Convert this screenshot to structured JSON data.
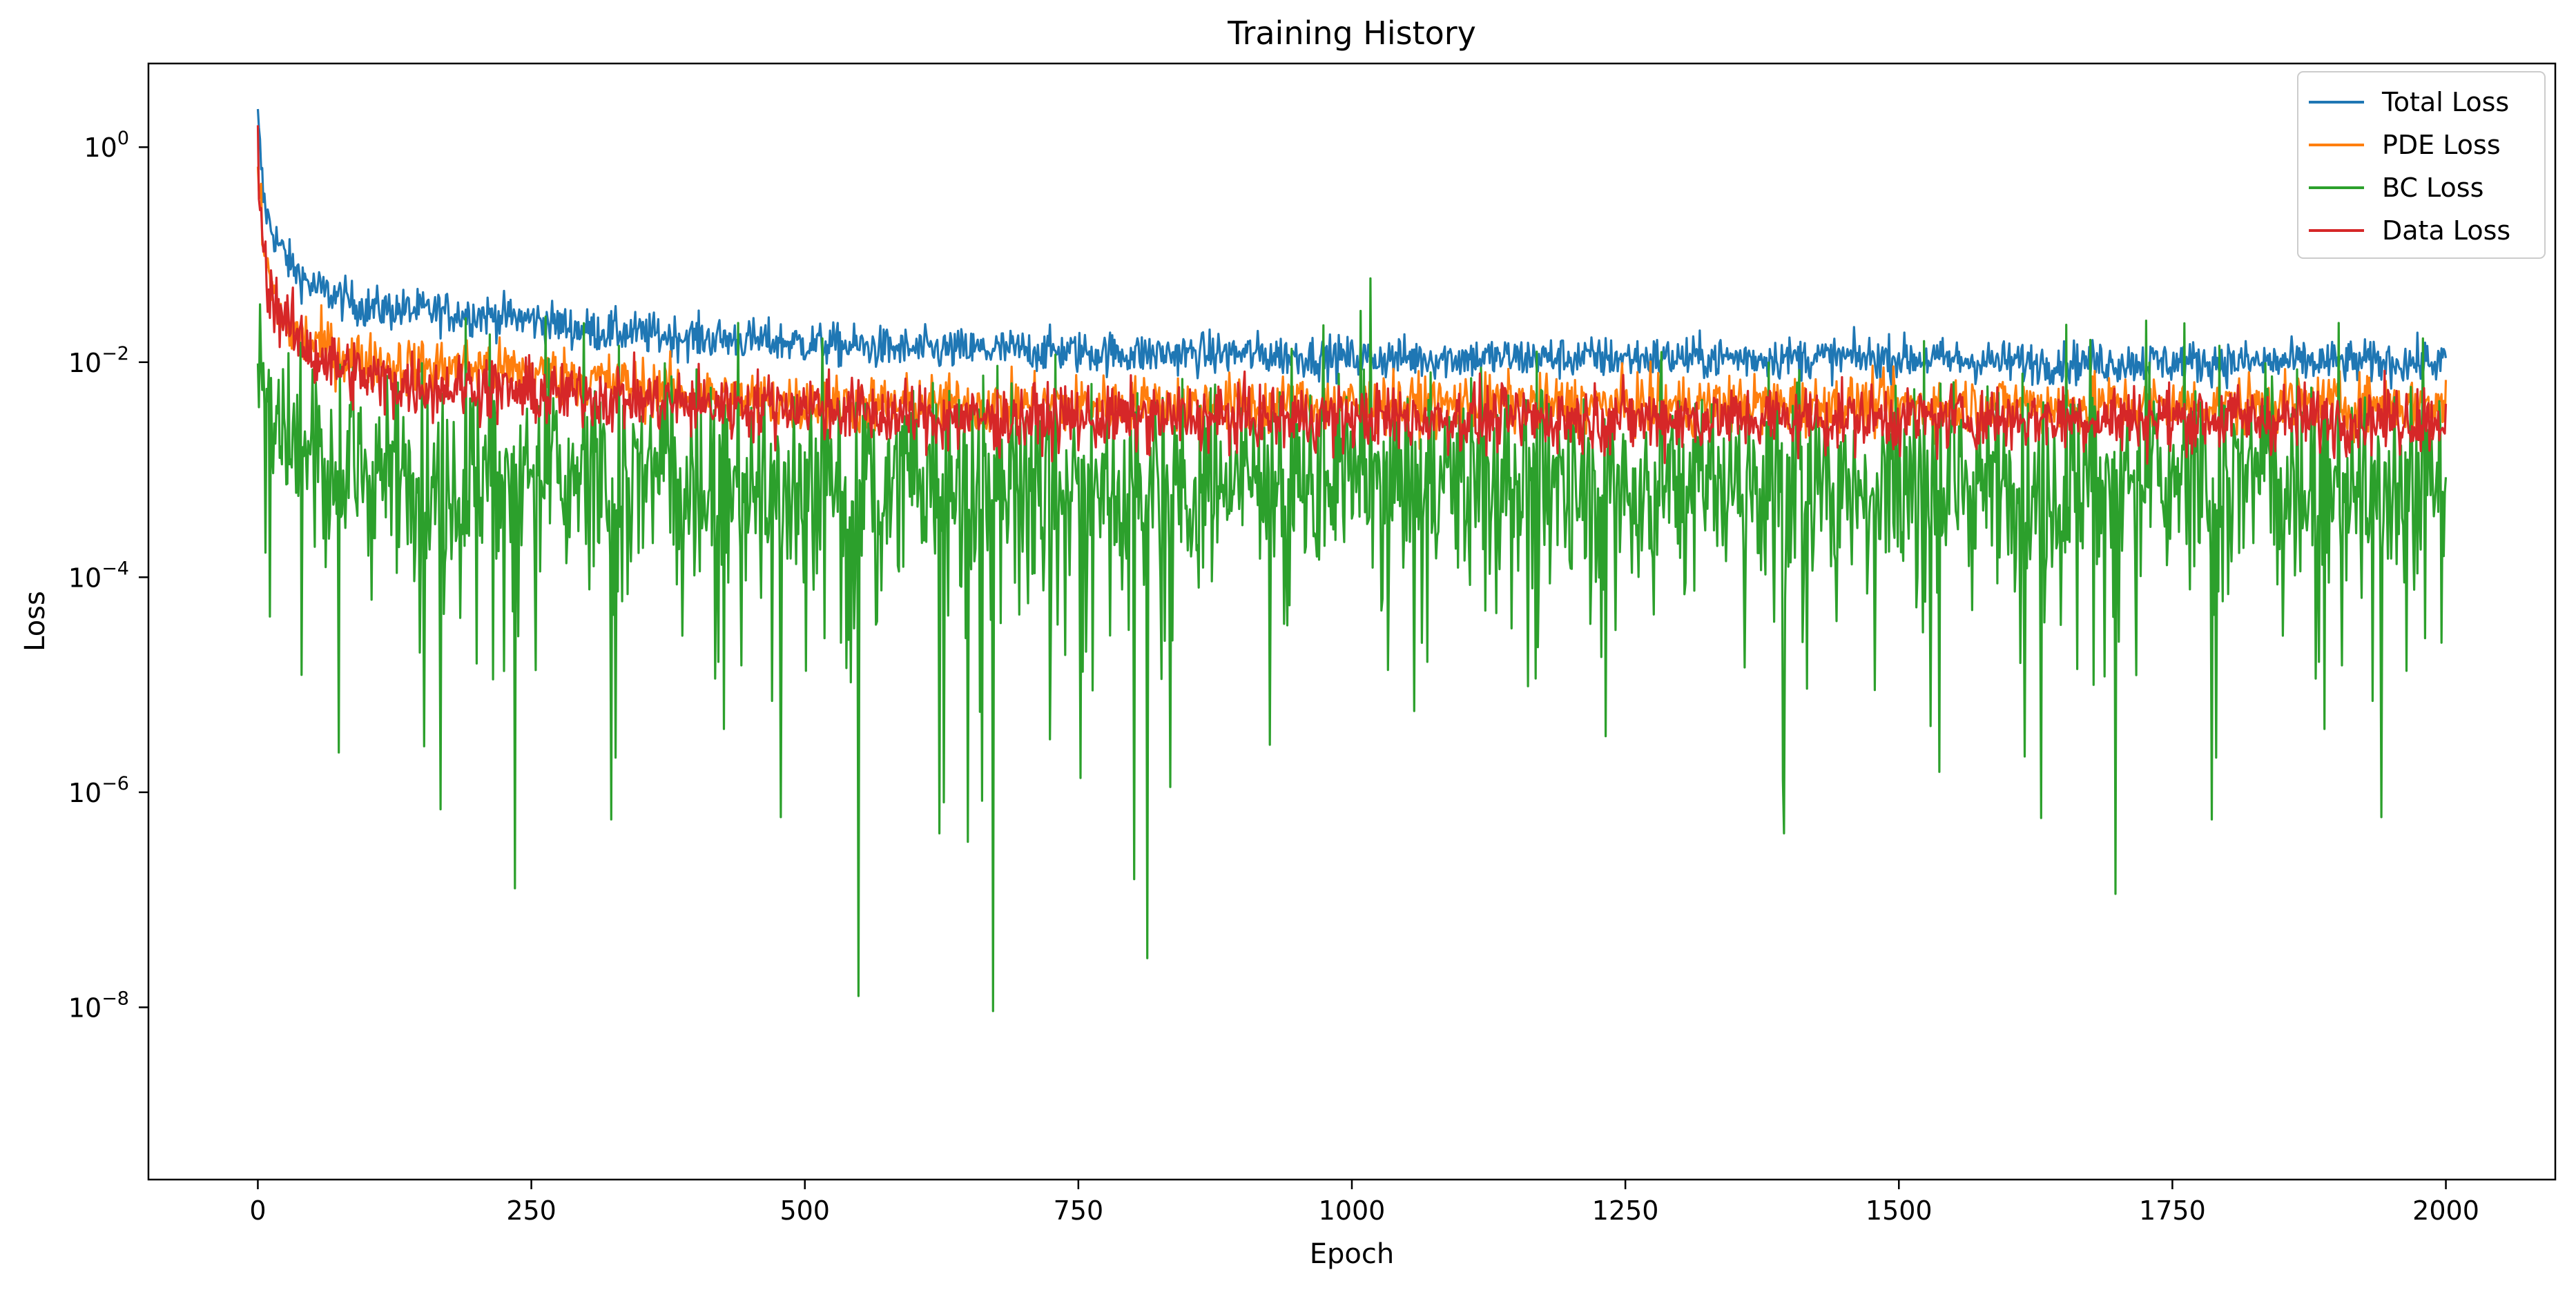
{
  "chart_data": {
    "type": "line",
    "title": "Training History",
    "xlabel": "Epoch",
    "ylabel": "Loss",
    "yscale": "log",
    "xlim": [
      -100,
      2100
    ],
    "ylim": [
      2.5e-10,
      6.0
    ],
    "grid": false,
    "legend_position": "top-right",
    "x_ticks": [
      {
        "value": 0,
        "label": "0"
      },
      {
        "value": 250,
        "label": "250"
      },
      {
        "value": 500,
        "label": "500"
      },
      {
        "value": 750,
        "label": "750"
      },
      {
        "value": 1000,
        "label": "1000"
      },
      {
        "value": 1250,
        "label": "1250"
      },
      {
        "value": 1500,
        "label": "1500"
      },
      {
        "value": 1750,
        "label": "1750"
      },
      {
        "value": 2000,
        "label": "2000"
      }
    ],
    "y_ticks": [
      {
        "value": 1,
        "base": "10",
        "exp": "0"
      },
      {
        "value": 0.01,
        "base": "10",
        "exp": "−2"
      },
      {
        "value": 0.0001,
        "base": "10",
        "exp": "−4"
      },
      {
        "value": 1e-06,
        "base": "10",
        "exp": "−6"
      },
      {
        "value": 1e-08,
        "base": "10",
        "exp": "−8"
      }
    ],
    "series": [
      {
        "name": "Total Loss",
        "color": "#1f77b4",
        "x": [
          0,
          5,
          10,
          20,
          30,
          50,
          75,
          100,
          150,
          200,
          250,
          300,
          400,
          500,
          600,
          700,
          800,
          900,
          1000,
          1100,
          1200,
          1300,
          1400,
          1500,
          1600,
          1700,
          1800,
          1900,
          2000
        ],
        "y": [
          1.8,
          0.35,
          0.2,
          0.12,
          0.08,
          0.05,
          0.04,
          0.032,
          0.03,
          0.028,
          0.025,
          0.02,
          0.017,
          0.015,
          0.013,
          0.013,
          0.012,
          0.012,
          0.011,
          0.011,
          0.011,
          0.011,
          0.011,
          0.011,
          0.01,
          0.01,
          0.01,
          0.01,
          0.01
        ]
      },
      {
        "name": "PDE Loss",
        "color": "#ff7f0e",
        "x": [
          0,
          5,
          10,
          20,
          30,
          50,
          75,
          100,
          150,
          200,
          250,
          300,
          400,
          500,
          600,
          700,
          800,
          900,
          1000,
          1100,
          1200,
          1300,
          1400,
          1500,
          1600,
          1700,
          1800,
          1900,
          2000
        ],
        "y": [
          0.6,
          0.12,
          0.06,
          0.03,
          0.02,
          0.015,
          0.012,
          0.01,
          0.009,
          0.009,
          0.008,
          0.007,
          0.005,
          0.004,
          0.004,
          0.004,
          0.004,
          0.004,
          0.004,
          0.004,
          0.004,
          0.004,
          0.004,
          0.004,
          0.004,
          0.004,
          0.004,
          0.004,
          0.004
        ]
      },
      {
        "name": "BC Loss",
        "color": "#2ca02c",
        "x": [
          0,
          5,
          10,
          20,
          30,
          50,
          75,
          100,
          150,
          200,
          250,
          300,
          400,
          500,
          600,
          700,
          800,
          900,
          1000,
          1100,
          1200,
          1300,
          1400,
          1500,
          1600,
          1700,
          1800,
          1900,
          2000
        ],
        "y": [
          0.02,
          0.01,
          0.005,
          0.003,
          0.002,
          0.0015,
          0.0012,
          0.001,
          0.001,
          0.0009,
          0.0009,
          0.0008,
          0.0008,
          0.0008,
          0.0008,
          0.0008,
          0.0008,
          0.0008,
          0.0008,
          0.0008,
          0.0008,
          0.0008,
          0.0008,
          0.0008,
          0.0008,
          0.0008,
          0.0008,
          0.0008,
          0.0008
        ]
      },
      {
        "name": "Data Loss",
        "color": "#d62728",
        "x": [
          0,
          5,
          10,
          20,
          30,
          50,
          75,
          100,
          150,
          200,
          250,
          300,
          400,
          500,
          600,
          700,
          800,
          900,
          1000,
          1100,
          1200,
          1300,
          1400,
          1500,
          1600,
          1700,
          1800,
          1900,
          2000
        ],
        "y": [
          0.9,
          0.1,
          0.05,
          0.03,
          0.02,
          0.012,
          0.009,
          0.007,
          0.006,
          0.006,
          0.005,
          0.005,
          0.004,
          0.004,
          0.003,
          0.003,
          0.003,
          0.003,
          0.003,
          0.003,
          0.003,
          0.003,
          0.003,
          0.003,
          0.003,
          0.003,
          0.003,
          0.003,
          0.003
        ]
      }
    ]
  }
}
